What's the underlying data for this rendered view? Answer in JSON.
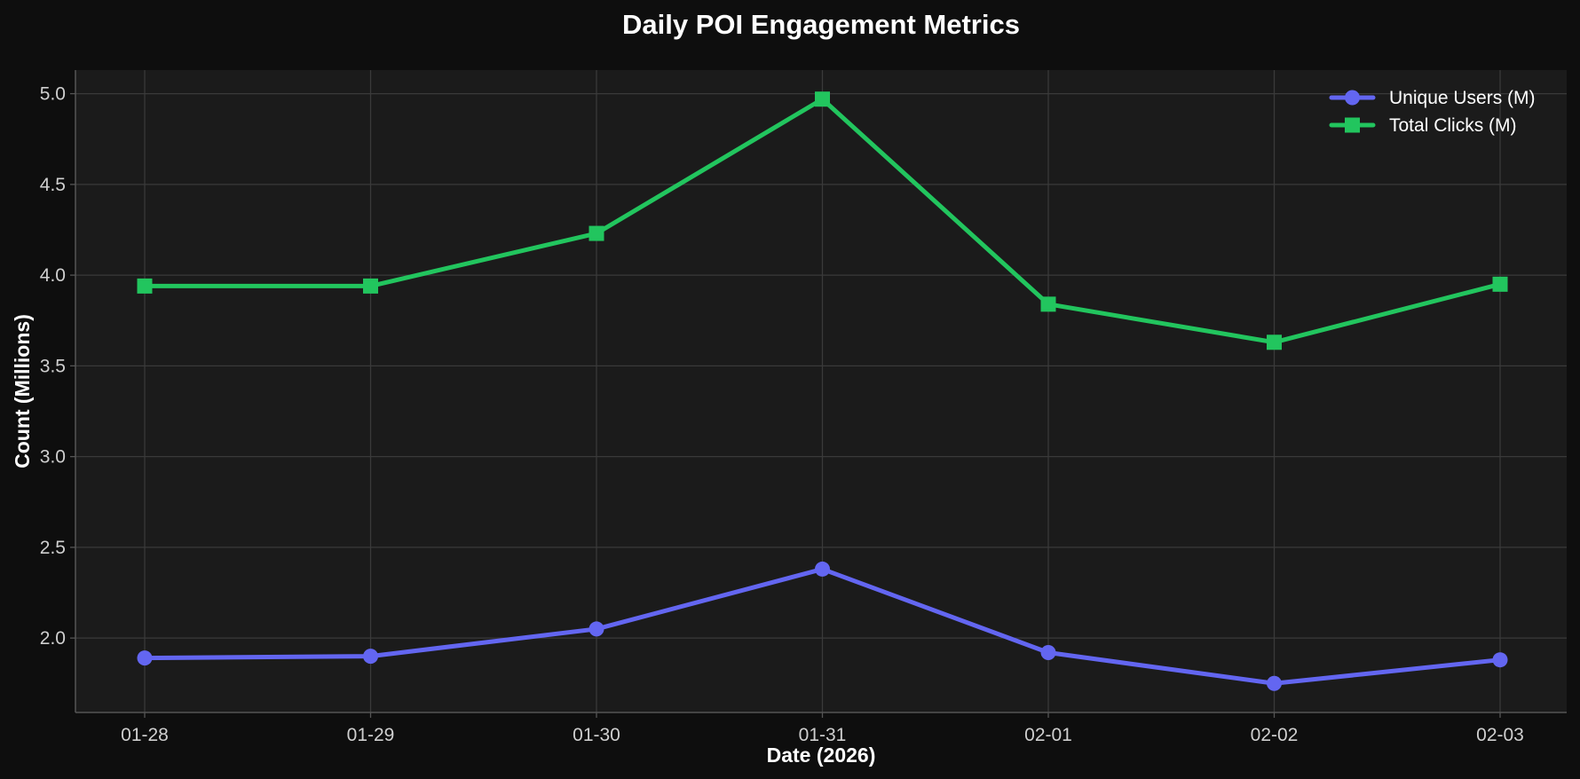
{
  "chart_data": {
    "type": "line",
    "title": "Daily POI Engagement Metrics",
    "xlabel": "Date (2026)",
    "ylabel": "Count (Millions)",
    "categories": [
      "01-28",
      "01-29",
      "01-30",
      "01-31",
      "02-01",
      "02-02",
      "02-03"
    ],
    "series": [
      {
        "name": "Unique Users (M)",
        "color": "#6366f1",
        "marker": "circle",
        "values": [
          1.89,
          1.9,
          2.05,
          2.38,
          1.92,
          1.75,
          1.88
        ]
      },
      {
        "name": "Total Clicks (M)",
        "color": "#22c55e",
        "marker": "square",
        "values": [
          3.94,
          3.94,
          4.23,
          4.97,
          3.84,
          3.63,
          3.95
        ]
      }
    ],
    "ylim": [
      1.59,
      5.13
    ],
    "yticks": [
      2.0,
      2.5,
      3.0,
      3.5,
      4.0,
      4.5,
      5.0
    ],
    "ytick_labels": [
      "2.0",
      "2.5",
      "3.0",
      "3.5",
      "4.0",
      "4.5",
      "5.0"
    ],
    "grid": true,
    "legend": "top-right",
    "colors": {
      "background": "#0e0e0e",
      "plot_background": "#1b1b1b",
      "grid": "#3a3a3a",
      "axis": "#555555"
    }
  }
}
